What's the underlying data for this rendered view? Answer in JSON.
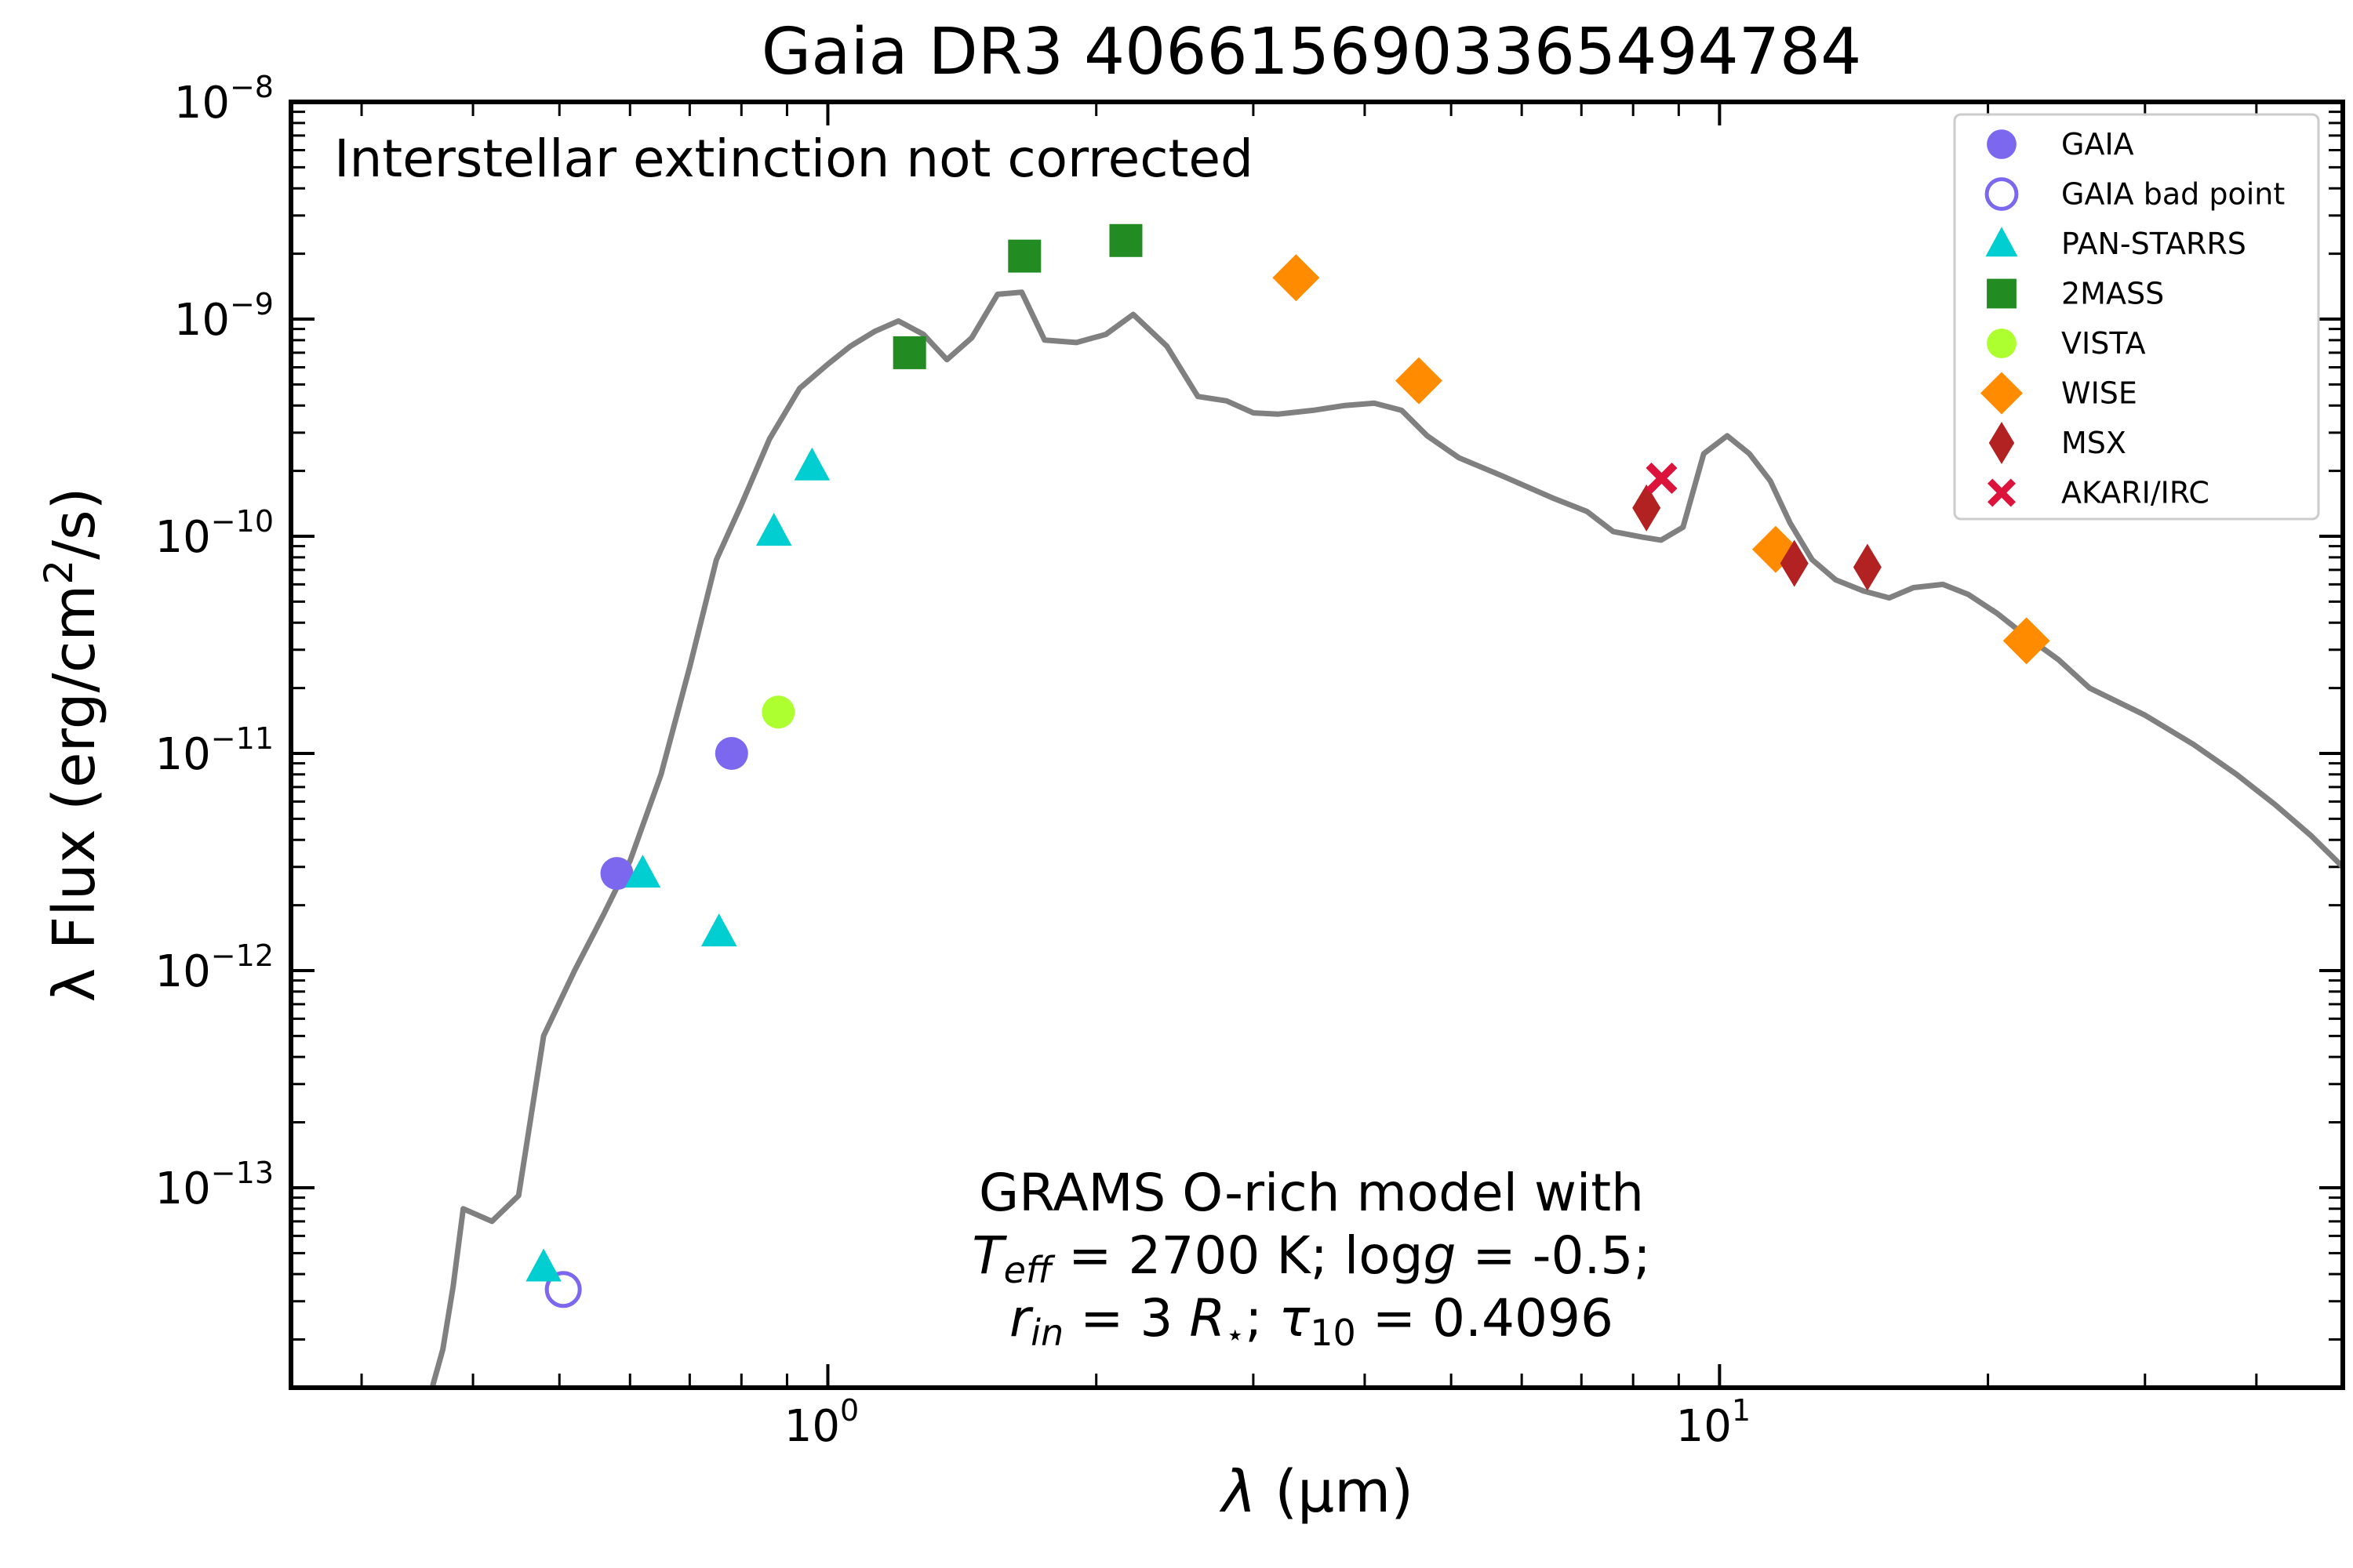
{
  "chart_data": {
    "type": "scatter",
    "title": "Gaia DR3 4066156903365494784",
    "xlabel_symbol": "λ",
    "xlabel_unit": "(μm)",
    "ylabel_prefix": "λ Flux (erg/cm",
    "ylabel_sup": "2",
    "ylabel_suffix": "/s)",
    "x_scale": "log",
    "y_scale": "log",
    "xlim": [
      0.25,
      50
    ],
    "ylim": [
      1.2e-14,
      1e-08
    ],
    "x_ticks": [
      {
        "base": "10",
        "exp": "0",
        "value": 1
      },
      {
        "base": "10",
        "exp": "1",
        "value": 10
      }
    ],
    "y_ticks": [
      {
        "base": "10",
        "exp": "−8",
        "value": 1e-08
      },
      {
        "base": "10",
        "exp": "−9",
        "value": 1e-09
      },
      {
        "base": "10",
        "exp": "−10",
        "value": 1e-10
      },
      {
        "base": "10",
        "exp": "−11",
        "value": 1e-11
      },
      {
        "base": "10",
        "exp": "−12",
        "value": 1e-12
      },
      {
        "base": "10",
        "exp": "−13",
        "value": 1e-13
      }
    ],
    "annotation_top": "Interstellar extinction not corrected",
    "model_text": {
      "line1": "GRAMS O-rich model with",
      "line2_a": "T",
      "line2_sub": "eff",
      "line2_b": " = 2700 K; log",
      "line2_g": "g",
      "line2_c": " = -0.5;",
      "line3_a": "r",
      "line3_sub": "in",
      "line3_b": " = 3 ",
      "line3_R": "R",
      "line3_star": "⋆",
      "line3_c": "; ",
      "line3_tau": "τ",
      "line3_tausub": "10",
      "line3_d": " = 0.4096"
    },
    "legend_position": "top-right",
    "model": {
      "color": "#808080",
      "points": [
        [
          0.36,
          1.2e-14
        ],
        [
          0.37,
          1.8e-14
        ],
        [
          0.38,
          3.5e-14
        ],
        [
          0.39,
          8e-14
        ],
        [
          0.42,
          7e-14
        ],
        [
          0.45,
          9.2e-14
        ],
        [
          0.48,
          5e-13
        ],
        [
          0.52,
          1e-12
        ],
        [
          0.56,
          1.8e-12
        ],
        [
          0.6,
          3.2e-12
        ],
        [
          0.65,
          8e-12
        ],
        [
          0.7,
          2.5e-11
        ],
        [
          0.75,
          7.8e-11
        ],
        [
          0.8,
          1.4e-10
        ],
        [
          0.86,
          2.8e-10
        ],
        [
          0.93,
          4.8e-10
        ],
        [
          1.0,
          6.2e-10
        ],
        [
          1.06,
          7.5e-10
        ],
        [
          1.13,
          8.8e-10
        ],
        [
          1.2,
          9.8e-10
        ],
        [
          1.28,
          8.5e-10
        ],
        [
          1.36,
          6.5e-10
        ],
        [
          1.45,
          8.2e-10
        ],
        [
          1.55,
          1.3e-09
        ],
        [
          1.65,
          1.33e-09
        ],
        [
          1.75,
          8e-10
        ],
        [
          1.9,
          7.8e-10
        ],
        [
          2.05,
          8.5e-10
        ],
        [
          2.2,
          1.05e-09
        ],
        [
          2.4,
          7.5e-10
        ],
        [
          2.6,
          4.4e-10
        ],
        [
          2.8,
          4.2e-10
        ],
        [
          3.0,
          3.7e-10
        ],
        [
          3.2,
          3.65e-10
        ],
        [
          3.5,
          3.8e-10
        ],
        [
          3.8,
          4e-10
        ],
        [
          4.1,
          4.1e-10
        ],
        [
          4.4,
          3.8e-10
        ],
        [
          4.7,
          2.9e-10
        ],
        [
          5.1,
          2.3e-10
        ],
        [
          5.7,
          1.9e-10
        ],
        [
          6.5,
          1.5e-10
        ],
        [
          7.1,
          1.3e-10
        ],
        [
          7.6,
          1.05e-10
        ],
        [
          8.2,
          9.9e-11
        ],
        [
          8.6,
          9.6e-11
        ],
        [
          9.1,
          1.1e-10
        ],
        [
          9.6,
          2.4e-10
        ],
        [
          10.2,
          2.9e-10
        ],
        [
          10.8,
          2.4e-10
        ],
        [
          11.4,
          1.8e-10
        ],
        [
          12.0,
          1.15e-10
        ],
        [
          12.7,
          7.8e-11
        ],
        [
          13.5,
          6.3e-11
        ],
        [
          14.5,
          5.6e-11
        ],
        [
          15.5,
          5.2e-11
        ],
        [
          16.5,
          5.8e-11
        ],
        [
          17.8,
          6e-11
        ],
        [
          19.0,
          5.4e-11
        ],
        [
          20.5,
          4.4e-11
        ],
        [
          22.0,
          3.5e-11
        ],
        [
          24.0,
          2.7e-11
        ],
        [
          26.0,
          2e-11
        ],
        [
          30.0,
          1.5e-11
        ],
        [
          34.0,
          1.1e-11
        ],
        [
          38.0,
          8e-12
        ],
        [
          42.0,
          5.8e-12
        ],
        [
          46.0,
          4.2e-12
        ],
        [
          50.0,
          3e-12
        ]
      ]
    },
    "series": [
      {
        "name": "GAIA",
        "marker": "circle",
        "color": "#7b68ee",
        "filled": true,
        "points": [
          [
            0.58,
            2.8e-12
          ],
          [
            0.78,
            1e-11
          ]
        ]
      },
      {
        "name": "GAIA bad point",
        "marker": "circle",
        "color": "#7b68ee",
        "filled": false,
        "points": [
          [
            0.505,
            3.4e-14
          ]
        ]
      },
      {
        "name": "PAN-STARRS",
        "marker": "triangle",
        "color": "#00ced1",
        "filled": true,
        "points": [
          [
            0.48,
            4.3e-14
          ],
          [
            0.62,
            2.8e-12
          ],
          [
            0.755,
            1.5e-12
          ],
          [
            0.87,
            1.05e-10
          ],
          [
            0.96,
            2.1e-10
          ]
        ]
      },
      {
        "name": "2MASS",
        "marker": "square",
        "color": "#228b22",
        "filled": true,
        "points": [
          [
            1.235,
            7e-10
          ],
          [
            1.662,
            1.95e-09
          ],
          [
            2.159,
            2.3e-09
          ]
        ]
      },
      {
        "name": "VISTA",
        "marker": "circle",
        "color": "#adff2f",
        "filled": true,
        "points": [
          [
            0.88,
            1.55e-11
          ]
        ]
      },
      {
        "name": "WISE",
        "marker": "diamond",
        "color": "#ff8c00",
        "filled": true,
        "points": [
          [
            3.35,
            1.55e-09
          ],
          [
            4.6,
            5.2e-10
          ],
          [
            11.56,
            8.7e-11
          ],
          [
            22.09,
            3.3e-11
          ]
        ]
      },
      {
        "name": "MSX",
        "marker": "thin_diamond",
        "color": "#b22222",
        "filled": true,
        "points": [
          [
            8.28,
            1.35e-10
          ],
          [
            12.13,
            7.5e-11
          ],
          [
            14.65,
            7.2e-11
          ]
        ]
      },
      {
        "name": "AKARI/IRC",
        "marker": "x",
        "color": "#dc143c",
        "filled": true,
        "points": [
          [
            8.61,
            1.85e-10
          ]
        ]
      }
    ]
  }
}
